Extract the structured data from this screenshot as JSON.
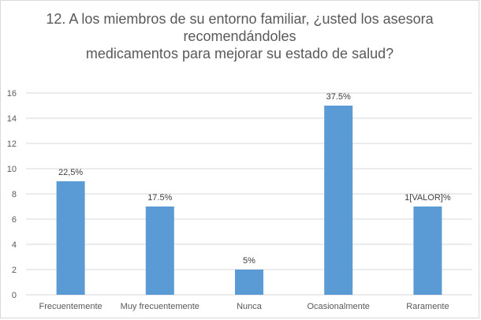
{
  "chart_data": {
    "type": "bar",
    "title_lines": [
      "12. A los miembros de su entorno familiar, ¿usted los asesora",
      "recomendándoles",
      "medicamentos para mejorar su estado de salud?"
    ],
    "categories": [
      "Frecuentemente",
      "Muy frecuentemente",
      "Nunca",
      "Ocasionalmente",
      "Raramente"
    ],
    "values": [
      9,
      7,
      2,
      15,
      7
    ],
    "data_labels": [
      "22,5%",
      "17.5%",
      "5%",
      "37.5%",
      "1[VALOR]%"
    ],
    "y_ticks": [
      "0",
      "2",
      "4",
      "6",
      "8",
      "10",
      "12",
      "14",
      "16"
    ],
    "ylim": [
      0,
      16
    ],
    "grid": true,
    "legend": "none",
    "colors": {
      "bar": "#5b9bd5",
      "grid": "#d9d9d9",
      "text": "#595959"
    }
  }
}
